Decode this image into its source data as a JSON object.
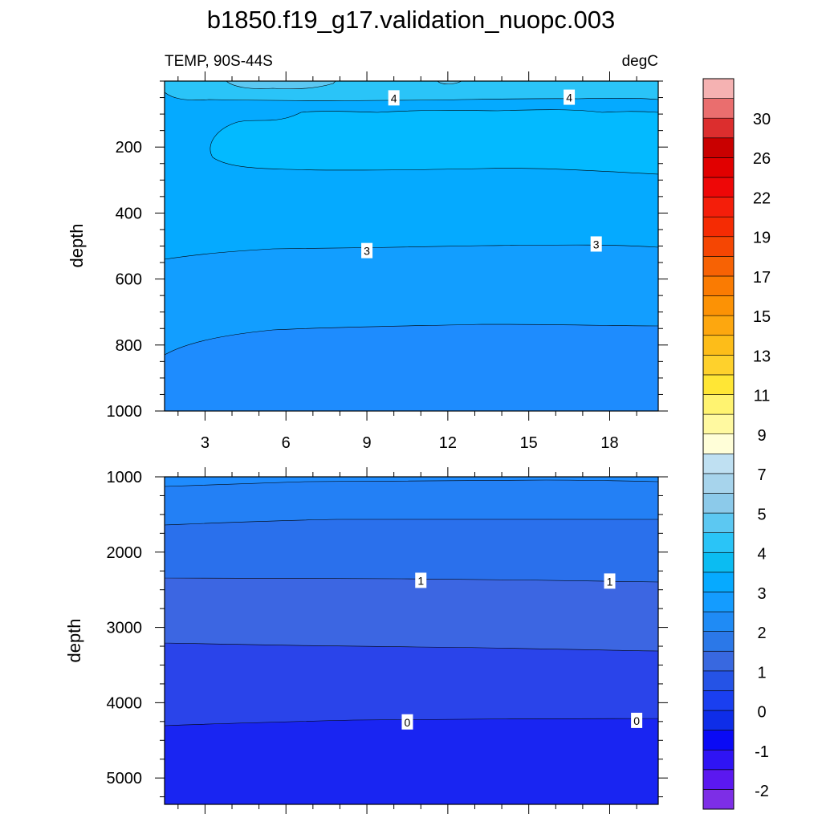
{
  "title": "b1850.f19_g17.validation_nuopc.003",
  "panel": {
    "left_label": "TEMP, 90S-44S",
    "right_label": "degC"
  },
  "colors": {
    "cb": [
      "#7d2ee6",
      "#5b18f0",
      "#2f14f4",
      "#0a0af5",
      "#0e2de8",
      "#1a3ff0",
      "#2553e6",
      "#3868e0",
      "#2b78e8",
      "#1f8bf5",
      "#149cff",
      "#06aaff",
      "#0bbcf2",
      "#2ac4f7",
      "#5cc8f2",
      "#8ccaea",
      "#a7d4ec",
      "#bfe0f2",
      "#fffed8",
      "#fff9a0",
      "#fff370",
      "#ffe635",
      "#fed12c",
      "#fdbd19",
      "#fda70f",
      "#fc9205",
      "#fa7b02",
      "#f76204",
      "#f54603",
      "#f52b03",
      "#f41e0a",
      "#ee0707",
      "#e10000",
      "#c90000",
      "#dc2e2e",
      "#ea6e6e",
      "#f5b2b2"
    ]
  },
  "chart_data": [
    {
      "type": "contour",
      "name": "upper",
      "ylabel": "depth",
      "xlim": [
        1.5,
        19.8
      ],
      "ylim": [
        1000,
        0
      ],
      "xticks": [
        3,
        6,
        9,
        12,
        15,
        18
      ],
      "xtick_labels": [
        "3",
        "6",
        "9",
        "12",
        "15",
        "18"
      ],
      "yticks": [
        200,
        400,
        600,
        800,
        1000
      ],
      "ytick_labels": [
        "200",
        "400",
        "600",
        "800",
        "1000"
      ],
      "contour_labels": [
        {
          "text": "4",
          "x": 10.0,
          "y": 52
        },
        {
          "text": "4",
          "x": 16.5,
          "y": 50
        },
        {
          "text": "3",
          "x": 9.0,
          "y": 515
        },
        {
          "text": "3",
          "x": 17.5,
          "y": 495
        }
      ]
    },
    {
      "type": "contour",
      "name": "lower",
      "ylabel": "depth",
      "xlim": [
        1.5,
        19.8
      ],
      "ylim": [
        5350,
        1000
      ],
      "yticks": [
        1000,
        2000,
        3000,
        4000,
        5000
      ],
      "ytick_labels": [
        "1000",
        "2000",
        "3000",
        "4000",
        "5000"
      ],
      "contour_labels": [
        {
          "text": "1",
          "x": 11.0,
          "y": 2380
        },
        {
          "text": "1",
          "x": 18.0,
          "y": 2390
        },
        {
          "text": "0",
          "x": 10.5,
          "y": 4260
        },
        {
          "text": "0",
          "x": 19.0,
          "y": 4240
        }
      ]
    },
    {
      "type": "colorbar",
      "name": "colorbar",
      "tick_labels": [
        "30",
        "26",
        "22",
        "19",
        "17",
        "15",
        "13",
        "11",
        "9",
        "7",
        "5",
        "4",
        "3",
        "2",
        "1",
        "0",
        "-1",
        "-2"
      ]
    }
  ]
}
